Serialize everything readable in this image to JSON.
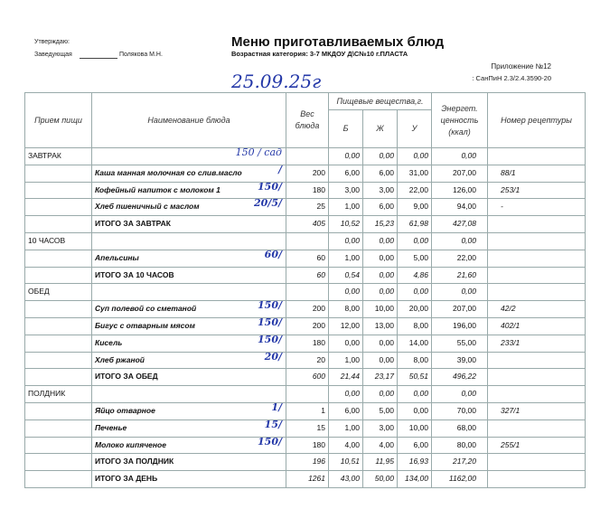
{
  "header": {
    "approve": "Утверждаю:",
    "position": "Заведующая",
    "name": "Полякова М.Н.",
    "title": "Меню приготавливаемых блюд",
    "subtitle": "Возрастная категория: 3-7 МКДОУ Д\\С№10 г.ПЛАСТА",
    "appendix": "Приложение №12",
    "sanpin": ": СанПиН 2.3/2.4.3590-20",
    "date_handwritten": "25.09.25г"
  },
  "columns": {
    "meal": "Прием пищи",
    "name": "Наименование   блюда",
    "weight": "Вес блюда",
    "nutrients": "Пищевые вещества,г.",
    "b": "Б",
    "zh": "Ж",
    "u": "У",
    "energy": "Энергет. ценность (ккал)",
    "recipe": "Номер рецептуры"
  },
  "rows": [
    {
      "type": "meal",
      "meal": "ЗАВТРАК",
      "name": "",
      "weight": "",
      "b": "0,00",
      "zh": "0,00",
      "u": "0,00",
      "e": "0,00",
      "r": "",
      "note": "150 / сад"
    },
    {
      "type": "item",
      "meal": "",
      "name": "Каша манная молочная со слив.масло",
      "weight": "200",
      "b": "6,00",
      "zh": "6,00",
      "u": "31,00",
      "e": "207,00",
      "r": "88/1",
      "note": "/"
    },
    {
      "type": "item",
      "meal": "",
      "name": "Кофейный напиток с молоком 1",
      "weight": "180",
      "b": "3,00",
      "zh": "3,00",
      "u": "22,00",
      "e": "126,00",
      "r": "253/1",
      "note": "150/"
    },
    {
      "type": "item",
      "meal": "",
      "name": "Хлеб пшеничный с маслом",
      "weight": "25",
      "b": "1,00",
      "zh": "6,00",
      "u": "9,00",
      "e": "94,00",
      "r": "-",
      "note": "20/5/"
    },
    {
      "type": "total",
      "meal": "",
      "name": "ИТОГО ЗА ЗАВТРАК",
      "weight": "405",
      "b": "10,52",
      "zh": "15,23",
      "u": "61,98",
      "e": "427,08",
      "r": "",
      "note": ""
    },
    {
      "type": "meal",
      "meal": "10 ЧАСОВ",
      "name": "",
      "weight": "",
      "b": "0,00",
      "zh": "0,00",
      "u": "0,00",
      "e": "0,00",
      "r": "",
      "note": ""
    },
    {
      "type": "item",
      "meal": "",
      "name": "Апельсины",
      "weight": "60",
      "b": "1,00",
      "zh": "0,00",
      "u": "5,00",
      "e": "22,00",
      "r": "",
      "note": "60/"
    },
    {
      "type": "total",
      "meal": "",
      "name": "ИТОГО ЗА 10 ЧАСОВ",
      "weight": "60",
      "b": "0,54",
      "zh": "0,00",
      "u": "4,86",
      "e": "21,60",
      "r": "",
      "note": ""
    },
    {
      "type": "meal",
      "meal": "ОБЕД",
      "name": "",
      "weight": "",
      "b": "0,00",
      "zh": "0,00",
      "u": "0,00",
      "e": "0,00",
      "r": "",
      "note": ""
    },
    {
      "type": "item",
      "meal": "",
      "name": "Суп полевой со сметаной",
      "weight": "200",
      "b": "8,00",
      "zh": "10,00",
      "u": "20,00",
      "e": "207,00",
      "r": "42/2",
      "note": "150/"
    },
    {
      "type": "item",
      "meal": "",
      "name": "Бигус с отварным мясом",
      "weight": "200",
      "b": "12,00",
      "zh": "13,00",
      "u": "8,00",
      "e": "196,00",
      "r": "402/1",
      "note": "150/"
    },
    {
      "type": "item",
      "meal": "",
      "name": "Кисель",
      "weight": "180",
      "b": "0,00",
      "zh": "0,00",
      "u": "14,00",
      "e": "55,00",
      "r": "233/1",
      "note": "150/"
    },
    {
      "type": "item",
      "meal": "",
      "name": "Хлеб ржаной",
      "weight": "20",
      "b": "1,00",
      "zh": "0,00",
      "u": "8,00",
      "e": "39,00",
      "r": "",
      "note": "20/"
    },
    {
      "type": "total",
      "meal": "",
      "name": "ИТОГО ЗА ОБЕД",
      "weight": "600",
      "b": "21,44",
      "zh": "23,17",
      "u": "50,51",
      "e": "496,22",
      "r": "",
      "note": ""
    },
    {
      "type": "meal",
      "meal": "ПОЛДНИК",
      "name": "",
      "weight": "",
      "b": "0,00",
      "zh": "0,00",
      "u": "0,00",
      "e": "0,00",
      "r": "",
      "note": ""
    },
    {
      "type": "item",
      "meal": "",
      "name": "Яйцо отварное",
      "weight": "1",
      "b": "6,00",
      "zh": "5,00",
      "u": "0,00",
      "e": "70,00",
      "r": "327/1",
      "note": "1/"
    },
    {
      "type": "item",
      "meal": "",
      "name": "Печенье",
      "weight": "15",
      "b": "1,00",
      "zh": "3,00",
      "u": "10,00",
      "e": "68,00",
      "r": "",
      "note": "15/"
    },
    {
      "type": "item",
      "meal": "",
      "name": "Молоко кипяченое",
      "weight": "180",
      "b": "4,00",
      "zh": "4,00",
      "u": "6,00",
      "e": "80,00",
      "r": "255/1",
      "note": "150/"
    },
    {
      "type": "total",
      "meal": "",
      "name": "ИТОГО ЗА ПОЛДНИК",
      "weight": "196",
      "b": "10,51",
      "zh": "11,95",
      "u": "16,93",
      "e": "217,20",
      "r": "",
      "note": ""
    },
    {
      "type": "total",
      "meal": "",
      "name": "ИТОГО ЗА   ДЕНЬ",
      "weight": "1261",
      "b": "43,00",
      "zh": "50,00",
      "u": "134,00",
      "e": "1162,00",
      "r": "",
      "note": ""
    }
  ]
}
